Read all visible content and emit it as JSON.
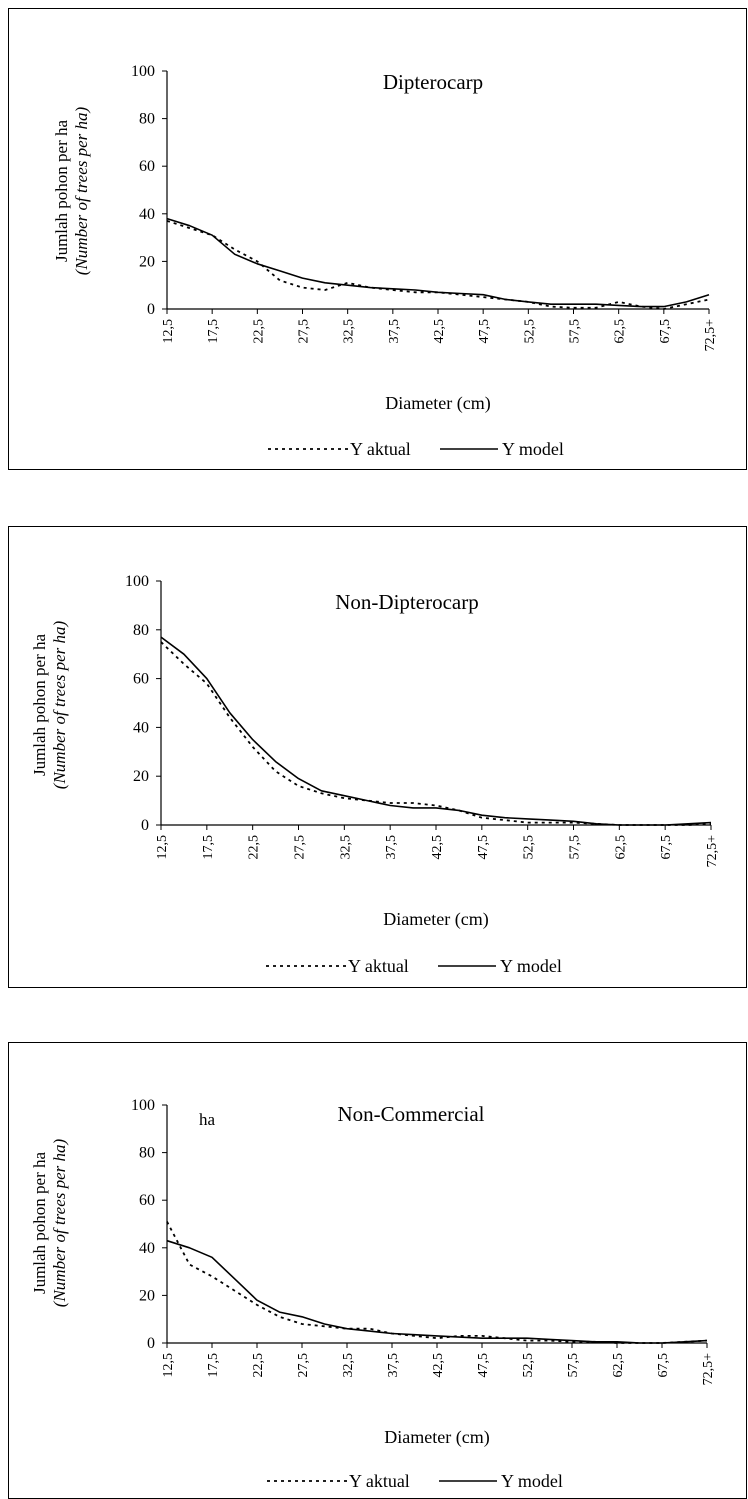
{
  "legend": {
    "actual": "Y aktual",
    "model": "Y model"
  },
  "chart_data": [
    {
      "type": "line",
      "title": "Dipterocarp",
      "ylabel": "Jumlah pohon per ha",
      "ylabel_italic": "(Number of trees per ha)",
      "ylabel_extra": "",
      "xlabel": "Diameter (cm)",
      "ylim": [
        0,
        100
      ],
      "yticks": [
        "0",
        "20",
        "40",
        "60",
        "80",
        "100"
      ],
      "categories": [
        "12,5",
        "17,5",
        "22,5",
        "27,5",
        "32,5",
        "37,5",
        "42,5",
        "47,5",
        "52,5",
        "57,5",
        "62,5",
        "67,5",
        "72,5+"
      ],
      "legend_position": "bottom",
      "series": [
        {
          "name": "Y aktual",
          "style": "dotted",
          "x": [
            12.5,
            15,
            17.5,
            20,
            22.5,
            25,
            27.5,
            30,
            32.5,
            35,
            37.5,
            40,
            42.5,
            45,
            47.5,
            50,
            52.5,
            55,
            57.5,
            60,
            62.5,
            65,
            67.5,
            70,
            72.5
          ],
          "values": [
            37,
            34,
            31,
            25,
            20,
            12,
            9,
            8,
            11,
            9,
            8,
            7,
            7,
            6,
            5,
            4,
            3,
            1,
            0.5,
            0.5,
            3,
            1,
            0,
            2,
            4
          ]
        },
        {
          "name": "Y model",
          "style": "solid",
          "x": [
            12.5,
            15,
            17.5,
            20,
            22.5,
            25,
            27.5,
            30,
            32.5,
            35,
            37.5,
            40,
            42.5,
            45,
            47.5,
            50,
            52.5,
            55,
            57.5,
            60,
            62.5,
            65,
            67.5,
            70,
            72.5
          ],
          "values": [
            38,
            35,
            31,
            23,
            19,
            16,
            13,
            11,
            10,
            9,
            8.5,
            8,
            7,
            6.5,
            6,
            4,
            3,
            2,
            2,
            2,
            1.5,
            1,
            1,
            3,
            6
          ]
        }
      ]
    },
    {
      "type": "line",
      "title": "Non-Dipterocarp",
      "ylabel": "Jumlah pohon per ha",
      "ylabel_italic": "(Number of trees per ha)",
      "ylabel_extra": "",
      "xlabel": "Diameter (cm)",
      "ylim": [
        0,
        100
      ],
      "yticks": [
        "0",
        "20",
        "40",
        "60",
        "80",
        "100"
      ],
      "categories": [
        "12,5",
        "17,5",
        "22,5",
        "27,5",
        "32,5",
        "37,5",
        "42,5",
        "47,5",
        "52,5",
        "57,5",
        "62,5",
        "67,5",
        "72,5+"
      ],
      "legend_position": "bottom",
      "series": [
        {
          "name": "Y aktual",
          "style": "dotted",
          "x": [
            12.5,
            15,
            17.5,
            20,
            22.5,
            25,
            27.5,
            30,
            32.5,
            35,
            37.5,
            40,
            42.5,
            45,
            47.5,
            50,
            52.5,
            55,
            57.5,
            60,
            62.5,
            65,
            67.5,
            70,
            72.5
          ],
          "values": [
            75,
            66,
            58,
            44,
            32,
            22,
            16,
            13,
            11,
            10,
            9,
            9,
            8,
            6,
            3,
            2,
            1,
            1,
            1,
            0.5,
            0,
            0,
            0,
            0,
            0.5
          ]
        },
        {
          "name": "Y model",
          "style": "solid",
          "x": [
            12.5,
            15,
            17.5,
            20,
            22.5,
            25,
            27.5,
            30,
            32.5,
            35,
            37.5,
            40,
            42.5,
            45,
            47.5,
            50,
            52.5,
            55,
            57.5,
            60,
            62.5,
            65,
            67.5,
            70,
            72.5
          ],
          "values": [
            77,
            70,
            60,
            46,
            35,
            26,
            19,
            14,
            12,
            10,
            8,
            7,
            7,
            6,
            4,
            3,
            2.5,
            2,
            1.5,
            0.5,
            0,
            0,
            0,
            0.5,
            1
          ]
        }
      ]
    },
    {
      "type": "line",
      "title": "Non-Commercial",
      "ylabel": "Jumlah pohon per ha",
      "ylabel_italic": "(Number of trees per ha)",
      "ylabel_extra": "ha",
      "xlabel": "Diameter (cm)",
      "ylim": [
        0,
        100
      ],
      "yticks": [
        "0",
        "20",
        "40",
        "60",
        "80",
        "100"
      ],
      "categories": [
        "12,5",
        "17,5",
        "22,5",
        "27,5",
        "32,5",
        "37,5",
        "42,5",
        "47,5",
        "52,5",
        "57,5",
        "62,5",
        "67,5",
        "72,5+"
      ],
      "legend_position": "bottom",
      "series": [
        {
          "name": "Y aktual",
          "style": "dotted",
          "x": [
            12.5,
            15,
            17.5,
            20,
            22.5,
            25,
            27.5,
            30,
            32.5,
            35,
            37.5,
            40,
            42.5,
            45,
            47.5,
            50,
            52.5,
            55,
            57.5,
            60,
            62.5,
            65,
            67.5,
            70,
            72.5
          ],
          "values": [
            51,
            33,
            28,
            22,
            16,
            11,
            8,
            7,
            6,
            6,
            4,
            3,
            2,
            3,
            3,
            2,
            1,
            1,
            0.5,
            0.5,
            0,
            0,
            0,
            0.5,
            1
          ]
        },
        {
          "name": "Y model",
          "style": "solid",
          "x": [
            12.5,
            15,
            17.5,
            20,
            22.5,
            25,
            27.5,
            30,
            32.5,
            35,
            37.5,
            40,
            42.5,
            45,
            47.5,
            50,
            52.5,
            55,
            57.5,
            60,
            62.5,
            65,
            67.5,
            70,
            72.5
          ],
          "values": [
            43,
            40,
            36,
            27,
            18,
            13,
            11,
            8,
            6,
            5,
            4,
            3.5,
            3,
            2.5,
            2,
            2,
            2,
            1.5,
            1,
            0.5,
            0.5,
            0,
            0,
            0.5,
            1
          ]
        }
      ]
    }
  ]
}
